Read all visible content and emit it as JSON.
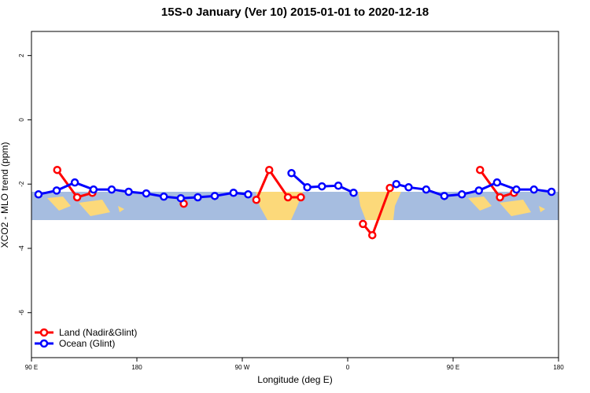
{
  "chart_data": {
    "type": "line",
    "title": "15S-0 January (Ver 10)   2015-01-01 to 2020-12-18",
    "x_label": "Longitude (deg E)",
    "y_label": "XCO2 - MLO trend (ppm)",
    "xlim": [
      90,
      540
    ],
    "ylim": [
      -7.4,
      2.75
    ],
    "xticks": [
      {
        "value": 90,
        "label": "90 E"
      },
      180,
      {
        "value": 270,
        "label": "90 W"
      },
      {
        "value": 360,
        "label": "0"
      },
      {
        "value": 450,
        "label": "90 E"
      },
      {
        "value": 540,
        "label": "180"
      }
    ],
    "yticks": [
      -6,
      -4,
      -2,
      0,
      2
    ],
    "legend": "bottom-left",
    "series": [
      {
        "name": "Land (Nadir&Glint)",
        "color": "#ff0000",
        "x": [
          112,
          129,
          142,
          null,
          220,
          null,
          282,
          293,
          309,
          320,
          null,
          373,
          381,
          396,
          null,
          473,
          490,
          502
        ],
        "values": [
          -1.56,
          -2.41,
          -2.27,
          null,
          -2.61,
          null,
          -2.49,
          -1.56,
          -2.41,
          -2.41,
          null,
          -3.24,
          -3.59,
          -2.12,
          null,
          -1.56,
          -2.41,
          -2.27
        ]
      },
      {
        "name": "Ocean (Glint)",
        "color": "#0000ff",
        "x": [
          96,
          111.5,
          127,
          143,
          158.5,
          173,
          188,
          203,
          217.5,
          232,
          246.5,
          262.5,
          275,
          null,
          312,
          325.5,
          338,
          352,
          365,
          null,
          401.5,
          412,
          427,
          442.5,
          457.5,
          472,
          487.5,
          504,
          519,
          534
        ],
        "values": [
          -2.32,
          -2.2,
          -1.95,
          -2.17,
          -2.17,
          -2.24,
          -2.29,
          -2.39,
          -2.44,
          -2.41,
          -2.37,
          -2.27,
          -2.32,
          null,
          -1.66,
          -2.1,
          -2.07,
          -2.05,
          -2.27,
          null,
          -2.0,
          -2.1,
          -2.17,
          -2.37,
          -2.32,
          -2.2,
          -1.95,
          -2.17,
          -2.17,
          -2.24
        ]
      }
    ]
  }
}
